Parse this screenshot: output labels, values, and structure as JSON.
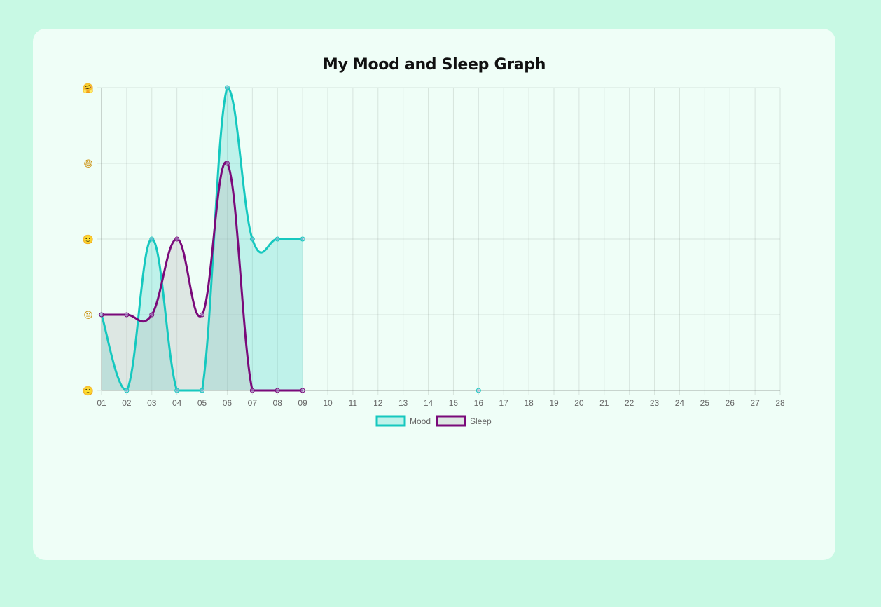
{
  "chart_data": {
    "type": "line",
    "title": "My Mood and Sleep Graph",
    "x": [
      "01",
      "02",
      "03",
      "04",
      "05",
      "06",
      "07",
      "08",
      "09",
      "10",
      "11",
      "12",
      "13",
      "14",
      "15",
      "16",
      "17",
      "18",
      "19",
      "20",
      "21",
      "22",
      "23",
      "24",
      "25",
      "26",
      "27",
      "28"
    ],
    "y_ticks": [
      "🙁",
      "😐",
      "🙂",
      "😄",
      "🤗"
    ],
    "ylim": [
      0,
      4
    ],
    "grid": true,
    "legend_position": "bottom",
    "series": [
      {
        "name": "Mood",
        "color": "#16c8bf",
        "fill": "rgba(22,200,191,0.22)",
        "values": [
          1,
          0,
          2,
          0,
          0,
          4,
          2,
          2,
          2,
          null,
          null,
          null,
          null,
          null,
          null,
          0,
          null,
          null,
          null,
          null,
          null,
          null,
          null,
          null,
          null,
          null,
          null,
          null
        ]
      },
      {
        "name": "Sleep",
        "color": "#7a0a7a",
        "fill": "rgba(190,190,190,0.35)",
        "values": [
          1,
          1,
          1,
          2,
          1,
          3,
          0,
          0,
          0,
          null,
          null,
          null,
          null,
          null,
          null,
          null,
          null,
          null,
          null,
          null,
          null,
          null,
          null,
          null,
          null,
          null,
          null,
          null
        ]
      }
    ]
  }
}
